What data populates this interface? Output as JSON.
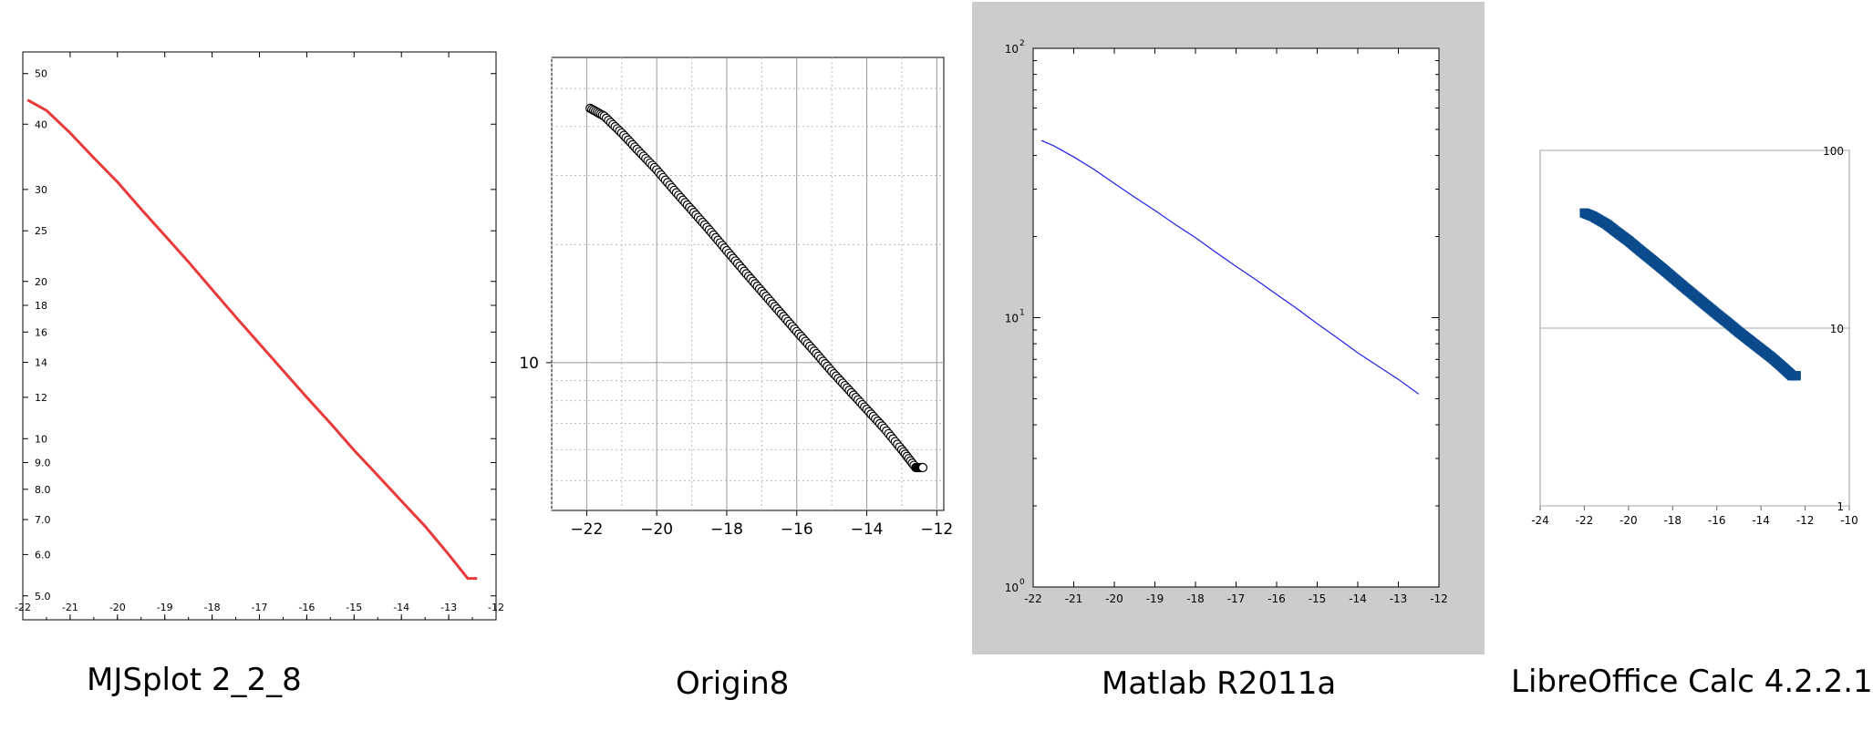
{
  "captions": {
    "mjsplot": "MJSplot 2_2_8",
    "origin": "Origin8",
    "matlab": "Matlab R2011a",
    "libre": "LibreOffice Calc 4.2.2.1"
  },
  "chart_data": [
    {
      "type": "line",
      "x": [
        -21.9,
        -21.5,
        -21.0,
        -20.5,
        -20.0,
        -19.5,
        -19.0,
        -18.5,
        -18.0,
        -17.5,
        -17.0,
        -16.5,
        -16.0,
        -15.5,
        -15.0,
        -14.5,
        -14.0,
        -13.5,
        -13.0,
        -12.6,
        -12.4
      ],
      "y": [
        44.5,
        42.5,
        38.5,
        34.5,
        31.0,
        27.5,
        24.5,
        21.8,
        19.3,
        17.1,
        15.2,
        13.5,
        12.0,
        10.7,
        9.5,
        8.5,
        7.6,
        6.8,
        6.0,
        5.4,
        5.4
      ],
      "xlim": [
        -22,
        -12
      ],
      "ylim": [
        4.5,
        55
      ],
      "yscale": "log",
      "xticks": [
        "-22",
        "-21",
        "-20",
        "-19",
        "-18",
        "-17",
        "-16",
        "-15",
        "-14",
        "-13",
        "-12"
      ],
      "yticks": [
        "5.0",
        "6.0",
        "7.0",
        "8.0",
        "9.0",
        "10",
        "12",
        "14",
        "16",
        "18",
        "20",
        "25",
        "30",
        "40",
        "50"
      ],
      "color": "#e83a3a",
      "grid": false
    },
    {
      "type": "scatter",
      "x": [
        -21.9,
        -21.5,
        -21.0,
        -20.5,
        -20.0,
        -19.5,
        -19.0,
        -18.5,
        -18.0,
        -17.5,
        -17.0,
        -16.5,
        -16.0,
        -15.5,
        -15.0,
        -14.5,
        -14.0,
        -13.5,
        -13.0,
        -12.6,
        -12.4
      ],
      "y": [
        44.5,
        42.5,
        38.5,
        34.5,
        31.0,
        27.5,
        24.5,
        21.8,
        19.3,
        17.1,
        15.2,
        13.5,
        12.0,
        10.7,
        9.5,
        8.5,
        7.6,
        6.8,
        6.0,
        5.4,
        5.4
      ],
      "xlim": [
        -23,
        -11.8
      ],
      "ylim": [
        4.2,
        60
      ],
      "yscale": "log",
      "xticks": [
        "-22",
        "-20",
        "-18",
        "-16",
        "-14",
        "-12"
      ],
      "yticks": [
        "10"
      ],
      "marker": "open-circle",
      "grid": true
    },
    {
      "type": "line",
      "x": [
        -21.8,
        -21.5,
        -21.0,
        -20.5,
        -20.0,
        -19.5,
        -19.0,
        -18.5,
        -18.0,
        -17.5,
        -17.0,
        -16.5,
        -16.0,
        -15.5,
        -15.0,
        -14.5,
        -14.0,
        -13.5,
        -13.0,
        -12.5
      ],
      "y": [
        45.5,
        43.5,
        39.5,
        35.5,
        31.5,
        28.0,
        25.0,
        22.2,
        19.8,
        17.5,
        15.5,
        13.8,
        12.2,
        10.8,
        9.5,
        8.4,
        7.4,
        6.6,
        5.9,
        5.2
      ],
      "xlim": [
        -22,
        -12
      ],
      "ylim": [
        1,
        100
      ],
      "yscale": "log",
      "xticks": [
        "-22",
        "-21",
        "-20",
        "-19",
        "-18",
        "-17",
        "-16",
        "-15",
        "-14",
        "-13",
        "-12"
      ],
      "yticks": [
        "10",
        "10",
        "10"
      ],
      "ytick_exponents": [
        "0",
        "1",
        "2"
      ],
      "color": "#1f1fe8",
      "background": "#cccccc",
      "grid": false
    },
    {
      "type": "scatter",
      "x": [
        -22.0,
        -21.6,
        -21.0,
        -20.5,
        -20.0,
        -19.5,
        -19.0,
        -18.5,
        -18.0,
        -17.5,
        -17.0,
        -16.5,
        -16.0,
        -15.5,
        -15.0,
        -14.5,
        -14.0,
        -13.5,
        -13.0,
        -12.6,
        -12.4
      ],
      "y": [
        44.5,
        42.5,
        38.5,
        34.5,
        31.0,
        27.5,
        24.5,
        21.8,
        19.3,
        17.1,
        15.2,
        13.5,
        12.0,
        10.7,
        9.5,
        8.5,
        7.6,
        6.8,
        6.0,
        5.4,
        5.4
      ],
      "xlim": [
        -24,
        -10
      ],
      "ylim": [
        1,
        100
      ],
      "yscale": "log",
      "xticks": [
        "-24",
        "-22",
        "-20",
        "-18",
        "-16",
        "-14",
        "-12",
        "-10"
      ],
      "yticks": [
        "1",
        "10",
        "100"
      ],
      "color": "#0a4b8c",
      "marker": "filled-square",
      "grid": "major-y"
    }
  ]
}
